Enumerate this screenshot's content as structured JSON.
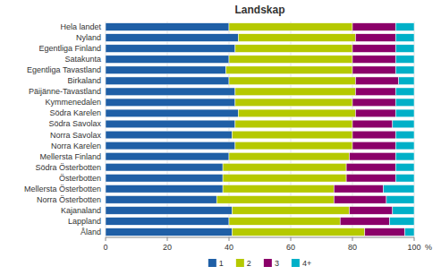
{
  "chart_data": {
    "type": "bar",
    "title": "Landskap",
    "orientation": "horizontal",
    "stacked": true,
    "categories": [
      "Hela landet",
      "Nyland",
      "Egentliga Finland",
      "Satakunta",
      "Egentliga Tavastland",
      "Birkaland",
      "Päijänne-Tavastland",
      "Kymmenedalen",
      "Södra Karelen",
      "Södra Savolax",
      "Norra Savolax",
      "Norra Karelen",
      "Mellersta Finland",
      "Södra Österbotten",
      "Österbotten",
      "Mellersta Österbotten",
      "Norra Österbotten",
      "Kajanaland",
      "Lappland",
      "Åland"
    ],
    "series": [
      {
        "name": "1",
        "color": "#1F5FA6",
        "values": [
          40,
          43,
          42,
          40,
          39,
          40,
          42,
          42,
          43,
          42,
          41,
          42,
          40,
          38,
          38,
          38,
          36,
          41,
          40,
          41
        ]
      },
      {
        "name": "2",
        "color": "#B5C900",
        "values": [
          40,
          38,
          38,
          40,
          41,
          41,
          39,
          38,
          38,
          38,
          39,
          38,
          39,
          40,
          40,
          36,
          38,
          38,
          36,
          43
        ]
      },
      {
        "name": "3",
        "color": "#8B0069",
        "values": [
          14,
          13,
          14,
          14,
          14,
          14,
          13,
          14,
          13,
          13,
          14,
          14,
          15,
          16,
          16,
          16,
          17,
          14,
          16,
          13
        ]
      },
      {
        "name": "4+",
        "color": "#00B0C8",
        "values": [
          6,
          6,
          6,
          6,
          6,
          5,
          6,
          6,
          6,
          7,
          6,
          6,
          6,
          6,
          6,
          10,
          9,
          7,
          8,
          3
        ]
      }
    ],
    "xlim": [
      0,
      100
    ],
    "xticks": [
      0,
      20,
      40,
      60,
      80,
      100
    ],
    "annotations": [
      "%"
    ],
    "grid": true,
    "legend": "bottom"
  }
}
